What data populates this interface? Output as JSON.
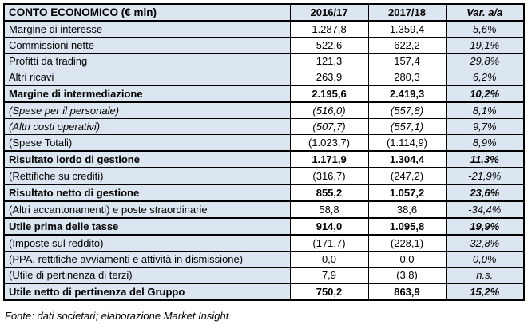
{
  "table": {
    "header": {
      "label": "CONTO ECONOMICO (€ mln)",
      "year1": "2016/17",
      "year2": "2017/18",
      "var": "Var. a/a"
    },
    "rows": [
      {
        "label": "Margine di interesse",
        "y1": "1.287,8",
        "y2": "1.359,4",
        "var": "5,6%",
        "style": "normal"
      },
      {
        "label": "Commissioni nette",
        "y1": "522,6",
        "y2": "622,2",
        "var": "19,1%",
        "style": "normal"
      },
      {
        "label": "Profitti da trading",
        "y1": "121,3",
        "y2": "157,4",
        "var": "29,8%",
        "style": "normal"
      },
      {
        "label": "Altri ricavi",
        "y1": "263,9",
        "y2": "280,3",
        "var": "6,2%",
        "style": "normal"
      },
      {
        "label": "Margine di intermediazione",
        "y1": "2.195,6",
        "y2": "2.419,3",
        "var": "10,2%",
        "style": "bold"
      },
      {
        "label": "(Spese per il personale)",
        "y1": "(516,0)",
        "y2": "(557,8)",
        "var": "8,1%",
        "style": "italic"
      },
      {
        "label": "(Altri costi operativi)",
        "y1": "(507,7)",
        "y2": "(557,1)",
        "var": "9,7%",
        "style": "italic"
      },
      {
        "label": "(Spese Totali)",
        "y1": "(1.023,7)",
        "y2": "(1.114,9)",
        "var": "8,9%",
        "style": "normal"
      },
      {
        "label": "Risultato lordo di gestione",
        "y1": "1.171,9",
        "y2": "1.304,4",
        "var": "11,3%",
        "style": "bold"
      },
      {
        "label": "(Rettifiche su crediti)",
        "y1": "(316,7)",
        "y2": "(247,2)",
        "var": "-21,9%",
        "style": "normal"
      },
      {
        "label": "Risultato netto di gestione",
        "y1": "855,2",
        "y2": "1.057,2",
        "var": "23,6%",
        "style": "bold"
      },
      {
        "label": "(Altri accantonamenti) e poste straordinarie",
        "y1": "58,8",
        "y2": "38,6",
        "var": "-34,4%",
        "style": "normal"
      },
      {
        "label": "Utile prima delle tasse",
        "y1": "914,0",
        "y2": "1.095,8",
        "var": "19,9%",
        "style": "bold"
      },
      {
        "label": "(Imposte sul reddito)",
        "y1": "(171,7)",
        "y2": "(228,1)",
        "var": "32,8%",
        "style": "normal"
      },
      {
        "label": "(PPA, rettifiche avviamenti e attività in dismissione)",
        "y1": "0,0",
        "y2": "0,0",
        "var": "0,0%",
        "style": "normal"
      },
      {
        "label": "(Utile di pertinenza di terzi)",
        "y1": "7,9",
        "y2": "(3,8)",
        "var": "n.s.",
        "style": "normal"
      },
      {
        "label": "Utile netto di pertinenza del Gruppo",
        "y1": "750,2",
        "y2": "863,9",
        "var": "15,2%",
        "style": "bold"
      }
    ]
  },
  "footer": {
    "source": "Fonte: dati societari; elaborazione Market Insight"
  },
  "colors": {
    "accent_row_bg": "#dce6f1",
    "cell_bg": "#ffffff",
    "border": "#000000",
    "text": "#000000"
  }
}
